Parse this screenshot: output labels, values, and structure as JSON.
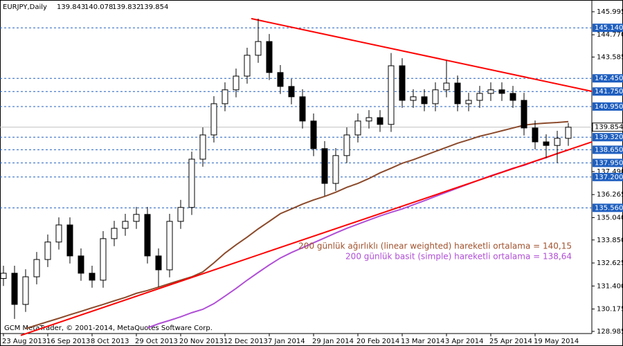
{
  "chart_data": {
    "type": "candlestick",
    "symbol": "EURJPY,Daily",
    "header_ohlc": [
      139.843,
      140.078,
      139.832,
      139.854
    ],
    "footer": "GCM MetaTrader, © 2001-2014, MetaQuotes Software Corp.",
    "categories": [
      "23 Aug 2013",
      null,
      null,
      null,
      "16 Sep 2013",
      null,
      null,
      null,
      "8 Oct 2013",
      null,
      null,
      null,
      "29 Oct 2013",
      null,
      null,
      null,
      "20 Nov 2013",
      null,
      null,
      null,
      "12 Dec 2013",
      null,
      null,
      null,
      "7 Jan 2014",
      null,
      null,
      null,
      "29 Jan 2014",
      null,
      null,
      null,
      "20 Feb 2014",
      null,
      null,
      null,
      "13 Mar 2014",
      null,
      null,
      null,
      "3 Apr 2014",
      null,
      null,
      null,
      "25 Apr 2014",
      null,
      null,
      null,
      "19 May 2014",
      null,
      null,
      null
    ],
    "open": [
      131.8,
      132.08,
      130.42,
      131.89,
      132.81,
      133.74,
      134.65,
      133.0,
      132.08,
      131.71,
      133.92,
      134.47,
      134.84,
      135.21,
      133.0,
      132.26,
      134.84,
      135.58,
      138.15,
      139.44,
      141.1,
      141.84,
      142.57,
      143.68,
      144.41,
      142.76,
      142.02,
      141.47,
      140.18,
      138.71,
      136.86,
      138.34,
      139.44,
      140.18,
      140.36,
      140.0,
      143.12,
      141.28,
      141.47,
      141.1,
      141.84,
      142.2,
      141.1,
      141.28,
      141.65,
      141.84,
      141.65,
      141.28,
      139.81,
      139.07,
      138.88,
      139.26
    ],
    "high": [
      132.48,
      132.48,
      132.29,
      133.21,
      134.14,
      135.05,
      135.05,
      133.4,
      132.48,
      134.32,
      134.87,
      135.24,
      135.61,
      135.61,
      133.4,
      135.24,
      135.98,
      138.55,
      139.84,
      141.5,
      142.24,
      142.97,
      144.08,
      145.63,
      144.81,
      143.16,
      142.42,
      141.87,
      140.58,
      139.11,
      138.74,
      139.84,
      140.58,
      140.76,
      140.76,
      143.8,
      143.52,
      141.87,
      141.87,
      142.24,
      143.4,
      142.6,
      141.68,
      142.05,
      142.24,
      142.24,
      142.05,
      141.68,
      140.21,
      139.47,
      139.66,
      140.08
    ],
    "low": [
      131.4,
      129.65,
      130.02,
      131.49,
      132.41,
      133.34,
      132.6,
      131.68,
      131.31,
      131.31,
      133.52,
      134.07,
      134.44,
      132.6,
      131.35,
      131.86,
      134.44,
      135.18,
      137.75,
      139.04,
      140.7,
      141.44,
      142.17,
      143.28,
      142.36,
      141.62,
      141.07,
      139.78,
      138.31,
      136.2,
      136.46,
      137.94,
      139.04,
      139.78,
      139.6,
      139.6,
      140.88,
      140.88,
      140.7,
      140.7,
      141.44,
      140.7,
      140.7,
      140.88,
      141.25,
      141.25,
      140.88,
      139.41,
      138.67,
      138.2,
      137.95,
      138.86
    ],
    "close": [
      132.08,
      130.42,
      131.89,
      132.81,
      133.74,
      134.65,
      133.0,
      132.08,
      131.71,
      133.92,
      134.47,
      134.84,
      135.21,
      133.0,
      132.26,
      134.84,
      135.58,
      138.15,
      139.44,
      141.1,
      141.84,
      142.57,
      143.68,
      144.41,
      142.76,
      142.02,
      141.47,
      140.18,
      138.71,
      136.86,
      138.34,
      139.44,
      140.18,
      140.36,
      140.0,
      143.12,
      141.28,
      141.47,
      141.1,
      141.84,
      142.2,
      141.1,
      141.28,
      141.65,
      141.84,
      141.65,
      141.28,
      139.81,
      139.07,
      138.88,
      139.26,
      139.85
    ],
    "moving_averages": [
      {
        "color": "#8b4a2b",
        "values": [
          null,
          null,
          129.13,
          129.32,
          129.5,
          129.68,
          129.87,
          130.05,
          130.24,
          130.42,
          130.61,
          130.79,
          131.01,
          131.16,
          131.34,
          131.53,
          131.71,
          131.89,
          132.15,
          132.63,
          133.15,
          133.59,
          134.0,
          134.44,
          134.84,
          135.25,
          135.5,
          135.76,
          135.98,
          136.17,
          136.39,
          136.65,
          136.86,
          137.12,
          137.42,
          137.67,
          137.93,
          138.12,
          138.34,
          138.56,
          138.78,
          139.0,
          139.18,
          139.37,
          139.51,
          139.66,
          139.81,
          139.96,
          140.03,
          140.07,
          140.1,
          140.15
        ]
      },
      {
        "color": "#b04fd6",
        "values": [
          null,
          null,
          null,
          null,
          null,
          null,
          null,
          null,
          null,
          null,
          null,
          null,
          null,
          129.17,
          129.39,
          129.57,
          129.76,
          129.98,
          130.16,
          130.46,
          130.86,
          131.27,
          131.71,
          132.12,
          132.52,
          132.89,
          133.18,
          133.44,
          133.7,
          133.96,
          134.22,
          134.47,
          134.69,
          134.91,
          135.13,
          135.32,
          135.5,
          135.72,
          135.94,
          136.17,
          136.39,
          136.61,
          136.83,
          137.05,
          137.27,
          137.46,
          137.67,
          137.82,
          138.04,
          138.23,
          138.45,
          138.64
        ]
      }
    ],
    "trendlines": [
      {
        "color": "#ff0000",
        "start": [
          22.375,
          145.63
        ],
        "end": [
          53.125,
          141.76
        ]
      },
      {
        "color": "#ff0000",
        "start": [
          1.5625,
          128.77
        ],
        "end": [
          53.125,
          139.07
        ]
      }
    ],
    "levels": [
      {
        "value": 145.14,
        "label": "145.140"
      },
      {
        "value": 142.45,
        "label": "142.450"
      },
      {
        "value": 141.75,
        "label": "141.750"
      },
      {
        "value": 140.95,
        "label": "140.950"
      },
      {
        "value": 139.32,
        "label": "139.320"
      },
      {
        "value": 138.65,
        "label": "138.650"
      },
      {
        "value": 137.95,
        "label": "137.950"
      },
      {
        "value": 137.2,
        "label": "137.200"
      },
      {
        "value": 135.56,
        "label": "135.560"
      }
    ],
    "level_color": "#1f5fbf",
    "annotations": [
      {
        "text": "200 günlük ağırlıklı (linear weighted) hareketli ortalama = 140,15",
        "color": "#a0522d"
      },
      {
        "text": "200 günlük basit (simple) hareketli ortalama = 138,64",
        "color": "#b04fd6"
      }
    ],
    "ylim": [
      128.87,
      146.62
    ],
    "yticks": [
      145.995,
      {
        "value": 144.77,
        "label": "144.770"
      },
      143.585,
      {
        "value": 137.49,
        "label": "137.490"
      },
      136.265,
      {
        "value": 135.04,
        "label": "135.040"
      },
      {
        "value": 133.85,
        "label": "133.850"
      },
      132.625,
      {
        "value": 131.4,
        "label": "131.400"
      },
      130.175,
      128.985
    ]
  }
}
